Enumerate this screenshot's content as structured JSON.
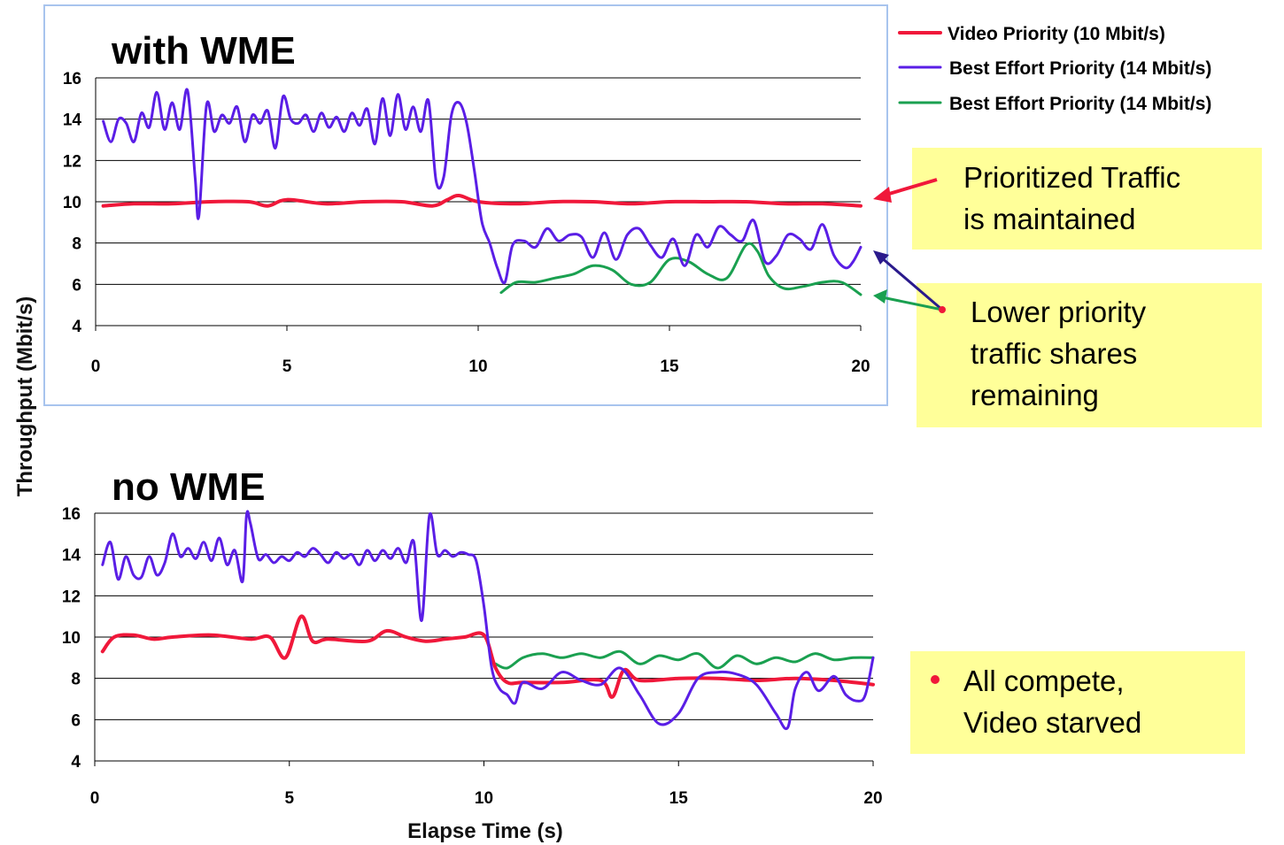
{
  "legend": [
    {
      "label": "Video Priority (10 Mbit/s)",
      "color": "#f0183a"
    },
    {
      "label": "Best Effort Priority (14 Mbit/s)",
      "color": "#5a1ee6"
    },
    {
      "label": "Best Effort Priority (14 Mbit/s)",
      "color": "#1aa050"
    }
  ],
  "annotations": {
    "prioritized": [
      "Prioritized Traffic",
      "is maintained"
    ],
    "lower": [
      "Lower priority",
      "traffic shares",
      "remaining"
    ],
    "starved": [
      "All compete,",
      "Video starved"
    ],
    "box_color": "#ffff99"
  },
  "chart_data": [
    {
      "type": "line",
      "title": "with WME",
      "ylabel": "Throughput (Mbit/s)",
      "xlabel": "",
      "xlim": [
        0,
        20
      ],
      "ylim": [
        4,
        16
      ],
      "xticks": [
        "0",
        "5",
        "10",
        "15",
        "20"
      ],
      "yticks": [
        "4",
        "6",
        "8",
        "10",
        "12",
        "14",
        "16"
      ],
      "grid": true,
      "series": [
        {
          "name": "Video Priority (10 Mbit/s)",
          "color": "#f0183a",
          "x": [
            0.2,
            1,
            2,
            3,
            4,
            4.5,
            5,
            6,
            7,
            8,
            8.8,
            9.2,
            9.5,
            10,
            11,
            12,
            13,
            14,
            15,
            16,
            17,
            18,
            19,
            20
          ],
          "y": [
            9.8,
            9.9,
            9.9,
            10.0,
            10.0,
            9.8,
            10.1,
            9.9,
            10.0,
            10.0,
            9.8,
            10.1,
            10.3,
            10.0,
            9.9,
            10.0,
            10.0,
            9.9,
            10.0,
            10.0,
            10.0,
            9.9,
            9.9,
            9.8
          ]
        },
        {
          "name": "Best Effort Priority (14 Mbit/s)",
          "color": "#5a1ee6",
          "x": [
            0.2,
            0.4,
            0.6,
            0.8,
            1.0,
            1.2,
            1.4,
            1.6,
            1.8,
            2.0,
            2.2,
            2.4,
            2.6,
            2.7,
            2.9,
            3.1,
            3.3,
            3.5,
            3.7,
            3.9,
            4.1,
            4.3,
            4.5,
            4.7,
            4.9,
            5.1,
            5.3,
            5.5,
            5.7,
            5.9,
            6.1,
            6.3,
            6.5,
            6.7,
            6.9,
            7.1,
            7.3,
            7.5,
            7.7,
            7.9,
            8.1,
            8.3,
            8.5,
            8.7,
            8.9,
            9.1,
            9.3,
            9.5,
            9.7,
            9.9,
            10.1,
            10.3,
            10.5,
            10.7,
            10.9,
            11.2,
            11.5,
            11.8,
            12.1,
            12.4,
            12.7,
            13.0,
            13.3,
            13.6,
            13.9,
            14.2,
            14.5,
            14.8,
            15.1,
            15.4,
            15.7,
            16.0,
            16.3,
            16.6,
            16.9,
            17.2,
            17.5,
            17.8,
            18.1,
            18.4,
            18.7,
            19.0,
            19.3,
            19.6,
            19.8,
            20.0
          ],
          "y": [
            13.9,
            12.9,
            14.0,
            13.8,
            12.9,
            14.3,
            13.6,
            15.3,
            13.5,
            14.8,
            13.5,
            15.4,
            11.2,
            9.3,
            14.7,
            13.4,
            14.2,
            13.8,
            14.6,
            12.9,
            14.2,
            13.8,
            14.4,
            12.6,
            15.1,
            14.0,
            13.8,
            14.2,
            13.4,
            14.3,
            13.6,
            14.1,
            13.4,
            14.3,
            13.7,
            14.5,
            12.8,
            15.0,
            13.2,
            15.2,
            13.5,
            14.6,
            13.4,
            14.9,
            11.0,
            11.2,
            14.2,
            14.8,
            13.8,
            11.5,
            9.0,
            8.0,
            6.8,
            6.1,
            7.9,
            8.1,
            7.8,
            8.7,
            8.1,
            8.4,
            8.3,
            7.3,
            8.5,
            7.2,
            8.4,
            8.7,
            7.9,
            7.3,
            8.2,
            6.9,
            8.4,
            7.8,
            8.8,
            8.4,
            8.1,
            9.1,
            7.1,
            7.4,
            8.4,
            8.2,
            7.7,
            8.9,
            7.4,
            6.8,
            7.1,
            7.8
          ]
        },
        {
          "name": "Best Effort Priority (14 Mbit/s)",
          "color": "#1aa050",
          "x": [
            10.6,
            11.0,
            11.5,
            12.0,
            12.5,
            13.0,
            13.5,
            14.0,
            14.5,
            15.0,
            15.5,
            16.0,
            16.5,
            17.0,
            17.3,
            17.6,
            18.0,
            18.5,
            19.0,
            19.5,
            20.0
          ],
          "y": [
            5.6,
            6.1,
            6.1,
            6.3,
            6.5,
            6.9,
            6.7,
            6.0,
            6.1,
            7.2,
            7.1,
            6.5,
            6.3,
            7.9,
            7.6,
            6.4,
            5.8,
            5.9,
            6.1,
            6.1,
            5.5
          ]
        }
      ]
    },
    {
      "type": "line",
      "title": "no WME",
      "ylabel": "Throughput (Mbit/s)",
      "xlabel": "Elapse Time (s)",
      "xlim": [
        0,
        20
      ],
      "ylim": [
        4,
        16
      ],
      "xticks": [
        "0",
        "5",
        "10",
        "15",
        "20"
      ],
      "yticks": [
        "4",
        "6",
        "8",
        "10",
        "12",
        "14",
        "16"
      ],
      "grid": true,
      "series": [
        {
          "name": "Video Priority (10 Mbit/s)",
          "color": "#f0183a",
          "x": [
            0.2,
            0.5,
            1,
            1.5,
            2,
            3,
            4,
            4.5,
            4.9,
            5.3,
            5.6,
            6,
            7,
            7.5,
            8,
            8.5,
            9,
            9.5,
            10,
            10.3,
            10.6,
            11,
            12,
            13,
            13.3,
            13.6,
            14,
            15,
            16,
            17,
            18,
            19,
            20
          ],
          "y": [
            9.3,
            10.0,
            10.1,
            9.9,
            10.0,
            10.1,
            9.9,
            10.0,
            9.0,
            11.0,
            9.8,
            9.9,
            9.8,
            10.3,
            10.0,
            9.8,
            9.9,
            10.0,
            10.1,
            8.5,
            7.8,
            7.8,
            7.8,
            7.9,
            7.1,
            8.4,
            7.9,
            8.0,
            8.0,
            7.9,
            8.0,
            7.9,
            7.7
          ]
        },
        {
          "name": "Best Effort Priority (14 Mbit/s)",
          "color": "#5a1ee6",
          "x": [
            0.2,
            0.4,
            0.6,
            0.8,
            1.0,
            1.2,
            1.4,
            1.6,
            1.8,
            2.0,
            2.2,
            2.4,
            2.6,
            2.8,
            3.0,
            3.2,
            3.4,
            3.6,
            3.8,
            3.9,
            4.0,
            4.2,
            4.4,
            4.6,
            4.8,
            5.0,
            5.2,
            5.4,
            5.6,
            5.8,
            6.0,
            6.2,
            6.4,
            6.6,
            6.8,
            7.0,
            7.2,
            7.4,
            7.6,
            7.8,
            8.0,
            8.2,
            8.4,
            8.6,
            8.8,
            9.0,
            9.2,
            9.4,
            9.6,
            9.8,
            10.0,
            10.2,
            10.4,
            10.6,
            10.8,
            11.0,
            11.5,
            12.0,
            12.5,
            13.0,
            13.5,
            14.0,
            14.5,
            15.0,
            15.5,
            16.0,
            16.5,
            17.0,
            17.5,
            17.8,
            18.0,
            18.3,
            18.6,
            19.0,
            19.3,
            19.6,
            19.8,
            20.0
          ],
          "y": [
            13.5,
            14.6,
            12.8,
            13.9,
            13.0,
            12.9,
            13.9,
            13.0,
            13.6,
            15.0,
            13.9,
            14.3,
            13.8,
            14.6,
            13.7,
            14.8,
            13.5,
            14.2,
            12.7,
            15.9,
            15.5,
            13.8,
            14.0,
            13.6,
            13.9,
            13.7,
            14.1,
            13.9,
            14.3,
            14.0,
            13.6,
            14.1,
            13.8,
            14.0,
            13.5,
            14.2,
            13.7,
            14.2,
            13.8,
            14.3,
            13.6,
            14.6,
            10.8,
            15.9,
            14.0,
            14.2,
            13.9,
            14.1,
            14.0,
            13.7,
            11.5,
            8.5,
            7.5,
            7.2,
            6.8,
            7.8,
            7.5,
            8.3,
            7.9,
            7.7,
            8.5,
            7.2,
            5.8,
            6.3,
            8.0,
            8.3,
            8.2,
            7.7,
            6.3,
            5.6,
            7.5,
            8.3,
            7.4,
            8.1,
            7.2,
            6.9,
            7.2,
            9.0
          ]
        },
        {
          "name": "Best Effort Priority (14 Mbit/s)",
          "color": "#1aa050",
          "x": [
            10.3,
            10.6,
            11.0,
            11.5,
            12.0,
            12.5,
            13.0,
            13.5,
            14.0,
            14.5,
            15.0,
            15.5,
            16.0,
            16.5,
            17.0,
            17.5,
            18.0,
            18.5,
            19.0,
            19.5,
            20.0
          ],
          "y": [
            8.7,
            8.5,
            9.0,
            9.2,
            9.0,
            9.2,
            9.0,
            9.3,
            8.7,
            9.1,
            8.9,
            9.2,
            8.5,
            9.1,
            8.7,
            9.0,
            8.8,
            9.2,
            8.9,
            9.0,
            9.0
          ]
        }
      ]
    }
  ]
}
